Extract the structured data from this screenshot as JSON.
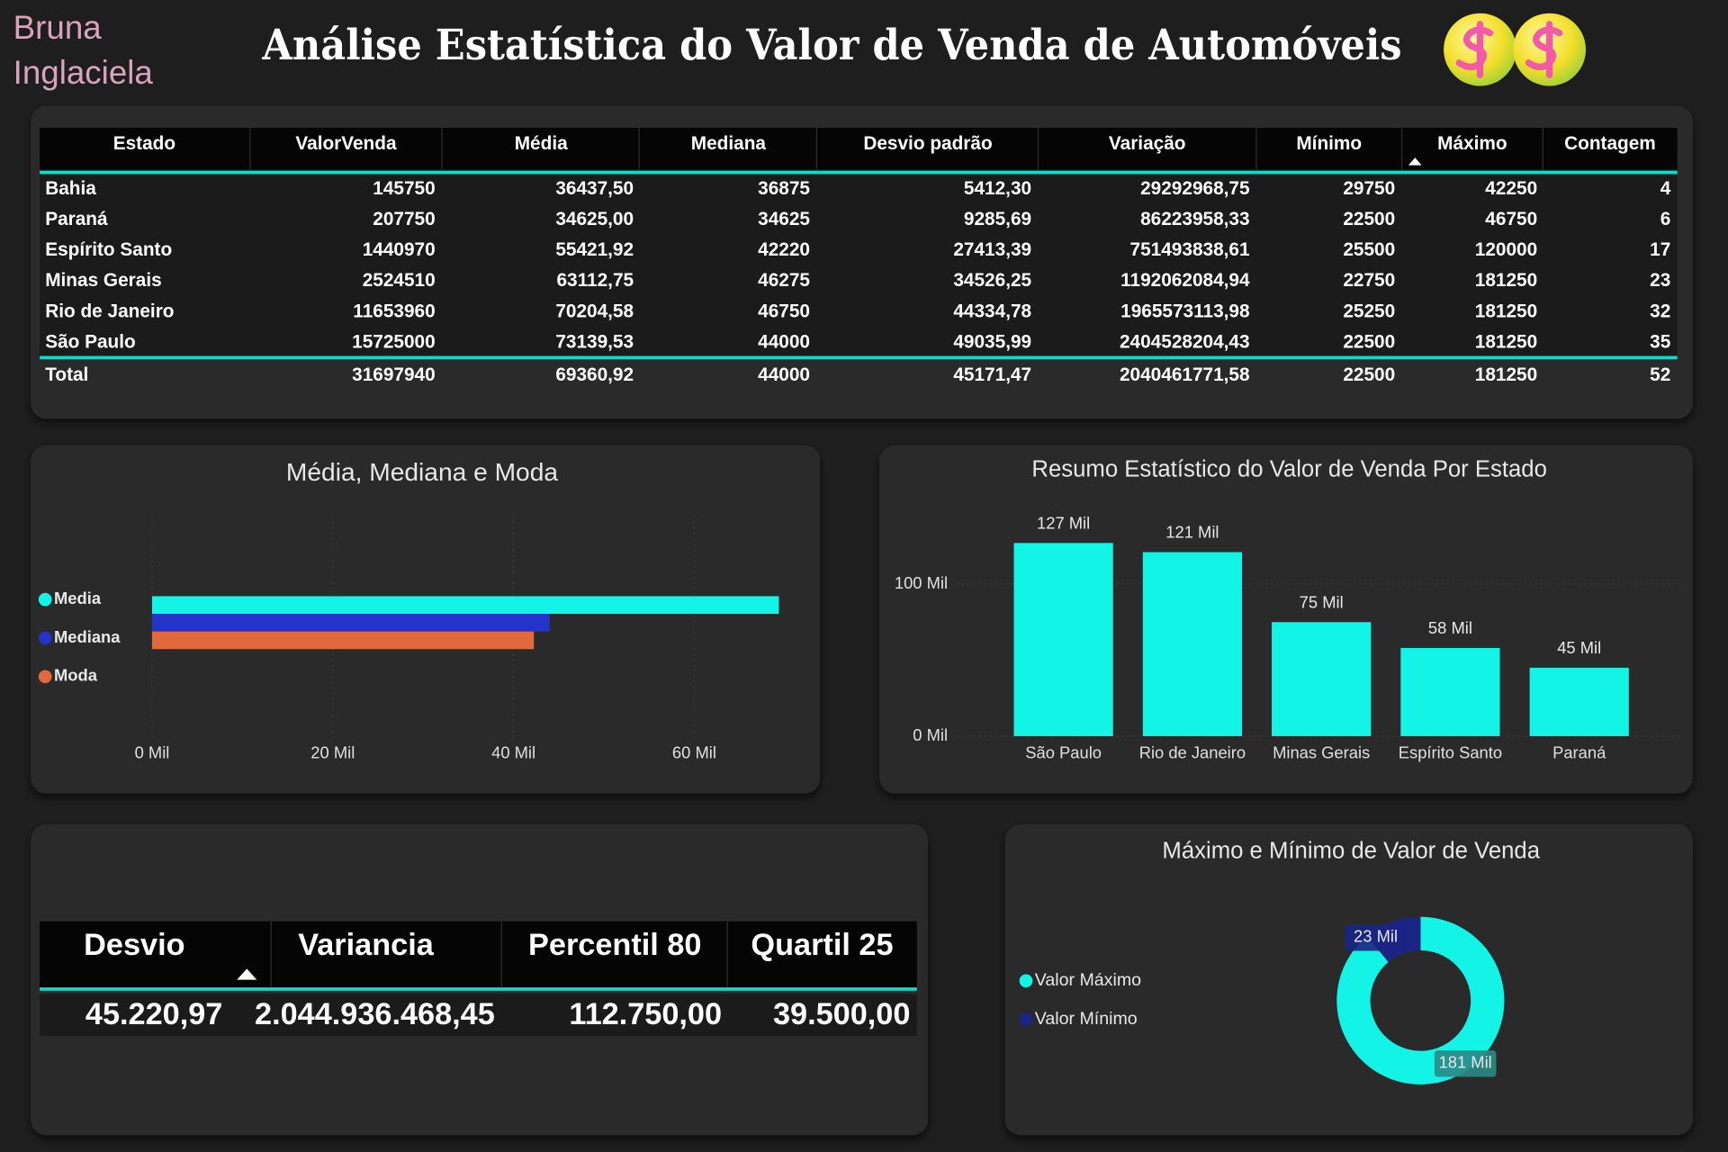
{
  "header": {
    "author": [
      "Bruna",
      "Inglaciela"
    ],
    "title": "Análise Estatística do Valor de Venda de Automóveis"
  },
  "stats_table": {
    "columns": [
      "Estado",
      "ValorVenda",
      "Média",
      "Mediana",
      "Desvio padrão",
      "Variação",
      "Mínimo",
      "Máximo",
      "Contagem"
    ],
    "rows": [
      [
        "Bahia",
        "145750",
        "36437,50",
        "36875",
        "5412,30",
        "29292968,75",
        "29750",
        "42250",
        "4"
      ],
      [
        "Paraná",
        "207750",
        "34625,00",
        "34625",
        "9285,69",
        "86223958,33",
        "22500",
        "46750",
        "6"
      ],
      [
        "Espírito Santo",
        "1440970",
        "55421,92",
        "42220",
        "27413,39",
        "751493838,61",
        "25500",
        "120000",
        "17"
      ],
      [
        "Minas Gerais",
        "2524510",
        "63112,75",
        "46275",
        "34526,25",
        "1192062084,94",
        "22750",
        "181250",
        "23"
      ],
      [
        "Rio de Janeiro",
        "11653960",
        "70204,58",
        "46750",
        "44334,78",
        "1965573113,98",
        "25250",
        "181250",
        "32"
      ],
      [
        "São Paulo",
        "15725000",
        "73139,53",
        "44000",
        "49035,99",
        "2404528204,43",
        "22500",
        "181250",
        "35"
      ]
    ],
    "total": [
      "Total",
      "31697940",
      "69360,92",
      "44000",
      "45171,47",
      "2040461771,58",
      "22500",
      "181250",
      "52"
    ]
  },
  "summary_table": {
    "columns": [
      "Desvio",
      "Variancia",
      "Percentil 80",
      "Quartil 25"
    ],
    "values": [
      "45.220,97",
      "2.044.936.468,45",
      "112.750,00",
      "39.500,00"
    ]
  },
  "chart_data": [
    {
      "type": "bar",
      "orientation": "horizontal",
      "title": "Média, Mediana e Moda",
      "categories": [
        null
      ],
      "series": [
        {
          "name": "Media",
          "color": "#14f4e6",
          "values": [
            69360.92
          ]
        },
        {
          "name": "Mediana",
          "color": "#2433c9",
          "values": [
            44000
          ]
        },
        {
          "name": "Moda",
          "color": "#e2693c",
          "values": [
            42250
          ]
        }
      ],
      "xlim": [
        0,
        72000
      ],
      "xticks": [
        {
          "value": 0,
          "label": "0 Mil"
        },
        {
          "value": 20000,
          "label": "20 Mil"
        },
        {
          "value": 40000,
          "label": "40 Mil"
        },
        {
          "value": 60000,
          "label": "60 Mil"
        }
      ],
      "grid": true,
      "legend": "left"
    },
    {
      "type": "bar",
      "orientation": "vertical",
      "title": "Resumo Estatístico do Valor de Venda Por Estado",
      "categories": [
        "São Paulo",
        "Rio de Janeiro",
        "Minas Gerais",
        "Espírito Santo",
        "Paraná"
      ],
      "values": [
        127000,
        121000,
        75000,
        58000,
        45000
      ],
      "value_labels": [
        "127 Mil",
        "121 Mil",
        "75 Mil",
        "58 Mil",
        "45 Mil"
      ],
      "color": "#14f4e6",
      "ylim": [
        0,
        150000
      ],
      "yticks": [
        {
          "value": 0,
          "label": "0 Mil"
        },
        {
          "value": 100000,
          "label": "100 Mil"
        }
      ],
      "grid": true
    },
    {
      "type": "pie",
      "title": "Máximo e Mínimo de Valor de Venda",
      "categories": [
        "Valor Máximo",
        "Valor Mínimo"
      ],
      "values": [
        181250,
        22500
      ],
      "value_labels": [
        "181 Mil",
        "23 Mil"
      ],
      "colors": [
        "#14f4e6",
        "#1b2585"
      ],
      "hole": 0.6,
      "legend": "left"
    }
  ]
}
